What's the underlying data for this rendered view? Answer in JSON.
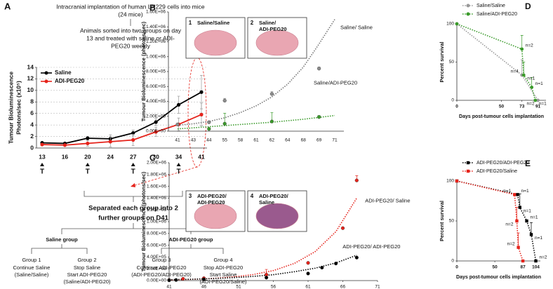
{
  "diagram": {
    "top_box": [
      "Intracranial implantation of human LN229 cells into mice",
      "(24 mice)"
    ],
    "sort_box": [
      "Animals sorted into two groups on day",
      "13 and treated with saline or ADI-",
      "PEG20 weekly"
    ],
    "separate_box": [
      "Separated each group into 2",
      "further groups on D41"
    ],
    "groups": [
      {
        "name": "Saline group",
        "subgroups": [
          {
            "title": "Group 1",
            "lines": [
              "Continue Saline",
              "(Saline/Saline)"
            ]
          },
          {
            "title": "Group 2",
            "lines": [
              "Stop Saline",
              "Start ADI-PEG20",
              "(Saline/ADI-PEG20)"
            ]
          }
        ]
      },
      {
        "name": "ADI-PEG20 group",
        "subgroups": [
          {
            "title": "Group 3",
            "lines": [
              "Continue ADI-PEG20",
              "(ADI-PEG20/ADI-PEG20)"
            ]
          },
          {
            "title": "Group 4",
            "lines": [
              "Stop ADI-PEG20",
              "Start Saline",
              "(ADI-PEG20/Saline)"
            ]
          }
        ]
      }
    ]
  },
  "chart_data": [
    {
      "type": "line",
      "panel": "A",
      "ylabel": [
        "Tumour Bioluminescence",
        "Photons/sec (x10⁵)"
      ],
      "categories": [
        "13",
        "16",
        "20",
        "24",
        "27",
        "30",
        "34",
        "41"
      ],
      "treatment_marker": "T",
      "treated": [
        true,
        false,
        true,
        false,
        true,
        false,
        true,
        false
      ],
      "ylim": [
        0,
        14
      ],
      "yticks": [
        0,
        2,
        4,
        6,
        8,
        10,
        12,
        14
      ],
      "grid": true,
      "legend": "upper left",
      "error_direction": "both",
      "series": [
        {
          "name": "Saline",
          "color": "#000000",
          "marker": "circle",
          "values": [
            0.9,
            0.8,
            1.7,
            1.6,
            2.6,
            4.5,
            7.5,
            9.7
          ],
          "errors": [
            0.2,
            0.2,
            0.3,
            0.7,
            0.5,
            0.6,
            1.5,
            2.9
          ]
        },
        {
          "name": "ADI-PEG20",
          "color": "#e5231b",
          "marker": "circle",
          "values": [
            0.6,
            0.5,
            0.8,
            1.1,
            1.4,
            2.8,
            4.1,
            5.8
          ],
          "errors": [
            0.1,
            0.1,
            0.5,
            0.9,
            1.0,
            0.8,
            1.1,
            2.0
          ]
        }
      ]
    },
    {
      "type": "scatter",
      "panel": "B",
      "ylabel": [
        "Tumour Bioluminescence (photons/sec)"
      ],
      "categories": [
        "41",
        "43",
        "44",
        "55",
        "58",
        "61",
        "62",
        "64",
        "68",
        "69",
        "71"
      ],
      "ylim": [
        0,
        1600000
      ],
      "yticks": [
        {
          "value": 0,
          "label": "0.00E+00"
        },
        {
          "value": 200000,
          "label": "2.00E+05"
        },
        {
          "value": 400000,
          "label": "4.00E+05"
        },
        {
          "value": 600000,
          "label": "6.00E+05"
        },
        {
          "value": 800000,
          "label": "8.00E+05"
        },
        {
          "value": 1000000,
          "label": "1.00E+06"
        },
        {
          "value": 1200000,
          "label": "1.20E+06"
        },
        {
          "value": 1400000,
          "label": "1.40E+06"
        },
        {
          "value": 1600000,
          "label": "1.60E+06"
        }
      ],
      "grid": false,
      "legend": "none",
      "series_labels": "end",
      "error_direction": "up",
      "insets": [
        {
          "number": "1",
          "label": [
            "Saline/Saline"
          ]
        },
        {
          "number": "2",
          "label": [
            "Saline/",
            "ADI-PEG20"
          ]
        }
      ],
      "series": [
        {
          "name": "Saline/ Saline",
          "color": "#777777",
          "style": "dotted",
          "values": [
            80000,
            100000,
            130000,
            180000,
            250000,
            340000,
            460000,
            630000,
            860000,
            1170000,
            1500000
          ]
        },
        {
          "name": "Saline/ADI-PEG20",
          "color": "#3a9a2a",
          "style": "dotted",
          "values": [
            30000,
            45000,
            60000,
            75000,
            90000,
            105000,
            120000,
            140000,
            160000,
            185000,
            210000
          ]
        },
        {
          "color": "#8c8c8c",
          "marker": "circle",
          "values": [
            90000,
            null,
            120000,
            410000,
            null,
            null,
            500000,
            null,
            null,
            840000,
            null
          ],
          "errors": [
            null,
            null,
            10000,
            30000,
            null,
            null,
            30000,
            null,
            null,
            20000,
            null
          ]
        },
        {
          "color": "#3a9a2a",
          "marker": "circle",
          "values": [
            null,
            null,
            30000,
            100000,
            null,
            null,
            130000,
            null,
            null,
            190000,
            null
          ],
          "errors": [
            null,
            null,
            null,
            140000,
            null,
            null,
            120000,
            null,
            null,
            20000,
            null
          ]
        }
      ]
    },
    {
      "type": "scatter",
      "panel": "C",
      "ylabel": [
        "Tumour Bioluminescence (photons/sec)"
      ],
      "xlim": [
        41,
        71
      ],
      "xticks": [
        41,
        46,
        51,
        56,
        61,
        66,
        71
      ],
      "ylim": [
        0,
        2000000
      ],
      "yticks": [
        {
          "value": 0,
          "label": "0.00E+00"
        },
        {
          "value": 200000,
          "label": "2.00E+05"
        },
        {
          "value": 400000,
          "label": "4.00E+05"
        },
        {
          "value": 600000,
          "label": "6.00E+05"
        },
        {
          "value": 800000,
          "label": "8.00E+05"
        },
        {
          "value": 1000000,
          "label": "1.00E+06"
        },
        {
          "value": 1200000,
          "label": "1.20E+06"
        },
        {
          "value": 1400000,
          "label": "1.40E+06"
        },
        {
          "value": 1600000,
          "label": "1.60E+06"
        },
        {
          "value": 1800000,
          "label": "1.80E+06"
        },
        {
          "value": 2000000,
          "label": "2.00E+06"
        }
      ],
      "grid": false,
      "legend": "none",
      "series_labels": "end",
      "error_direction": "up",
      "insets": [
        {
          "number": "3",
          "label": [
            "ADI-PEG20/",
            "ADI-PEG20"
          ]
        },
        {
          "number": "4",
          "label": [
            "ADI-PEG20/",
            "Saline"
          ]
        }
      ],
      "series": [
        {
          "name": "ADI-PEG20/ Saline",
          "color": "#e5231b",
          "style": "dotted",
          "x": [
            41,
            44,
            47,
            50,
            53,
            56,
            59,
            62,
            65,
            68
          ],
          "values": [
            10000,
            20000,
            35000,
            60000,
            100000,
            170000,
            290000,
            490000,
            830000,
            1400000
          ]
        },
        {
          "name": "ADI-PEG20/ ADI-PEG20",
          "color": "#000000",
          "style": "dotted",
          "x": [
            41,
            44,
            47,
            50,
            53,
            56,
            59,
            62,
            65,
            68
          ],
          "values": [
            15000,
            22000,
            33000,
            48000,
            70000,
            100000,
            150000,
            210000,
            300000,
            430000
          ]
        },
        {
          "color": "#e5231b",
          "marker": "circle",
          "x": [
            41,
            43,
            46,
            55,
            61,
            66,
            68
          ],
          "values": [
            10000,
            30000,
            40000,
            100000,
            300000,
            890000,
            1700000
          ],
          "errors": [
            null,
            null,
            null,
            90000,
            null,
            null,
            80000
          ]
        },
        {
          "color": "#000000",
          "marker": "circle",
          "x": [
            41,
            42,
            46,
            55,
            61,
            63,
            65,
            68
          ],
          "values": [
            5000,
            10000,
            20000,
            50000,
            120000,
            220000,
            290000,
            390000
          ]
        }
      ]
    },
    {
      "type": "survival",
      "panel": "D",
      "ylabel": [
        "Percent survival"
      ],
      "xlabel": "Days post-tumour cells implantation",
      "xlim": [
        0,
        100
      ],
      "xticks": [
        0,
        50,
        73,
        91
      ],
      "ylim": [
        0,
        100
      ],
      "yticks": [
        0,
        50,
        100
      ],
      "legend": "above",
      "error_direction": "up",
      "series": [
        {
          "name": "Saline/Saline",
          "color": "#999999",
          "marker": "circle",
          "x": [
            0,
            73,
            91
          ],
          "values": [
            100,
            33,
            0
          ],
          "errors": [
            null,
            20,
            null
          ],
          "point_labels": [
            null,
            "n=4",
            "n=2"
          ]
        },
        {
          "name": "Saline/ADI-PEG20",
          "color": "#3a9a2a",
          "marker": "circle",
          "x": [
            0,
            73,
            75,
            84,
            88
          ],
          "values": [
            100,
            67,
            33,
            17,
            0
          ],
          "errors": [
            null,
            18,
            17,
            13,
            null
          ],
          "point_labels": [
            null,
            "n=2",
            "n=1",
            "n=1",
            "n=1"
          ]
        }
      ]
    },
    {
      "type": "survival",
      "panel": "E",
      "ylabel": [
        "Percent survival"
      ],
      "xlabel": "Days post-tumour cells implantation",
      "xlim": [
        0,
        110
      ],
      "xticks": [
        0,
        50,
        87,
        104
      ],
      "ylim": [
        0,
        100
      ],
      "yticks": [
        0,
        50,
        100
      ],
      "legend": "above",
      "error_direction": "up",
      "series": [
        {
          "name": "ADI-PEG20/ADI-PEG20",
          "color": "#000000",
          "marker": "square",
          "x": [
            0,
            80,
            83,
            92,
            98,
            104
          ],
          "values": [
            100,
            83,
            67,
            50,
            33,
            0
          ],
          "errors": [
            null,
            null,
            17,
            null,
            15,
            null
          ],
          "point_labels": [
            null,
            "n=1",
            "n=1",
            "n=1",
            "n=1",
            "n=2"
          ]
        },
        {
          "name": "ADI-PEG20/Saline",
          "color": "#e5231b",
          "marker": "square",
          "x": [
            0,
            76,
            79,
            81,
            87
          ],
          "values": [
            100,
            83,
            50,
            17,
            0
          ],
          "errors": [
            null,
            null,
            17,
            18,
            null
          ],
          "point_labels": [
            null,
            "n=1",
            "n=2",
            "n=2",
            null
          ]
        }
      ]
    }
  ]
}
